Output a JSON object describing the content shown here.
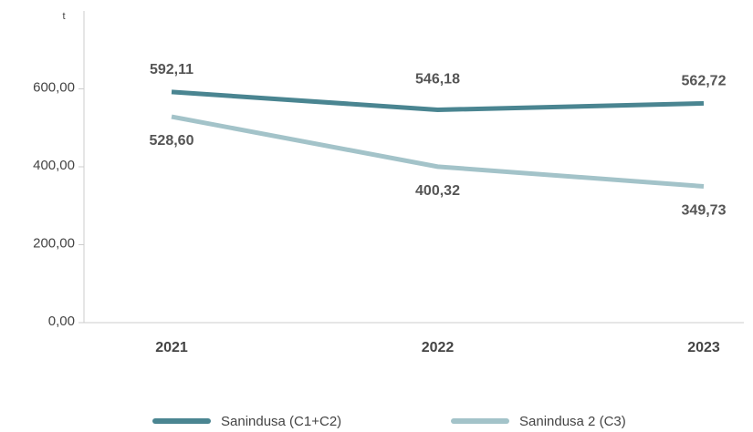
{
  "chart_data": {
    "type": "line",
    "y_label": "t",
    "categories": [
      "2021",
      "2022",
      "2023"
    ],
    "series": [
      {
        "name": "Sanindusa (C1+C2)",
        "color": "#4a8591",
        "values": [
          592.11,
          546.18,
          562.72
        ],
        "value_labels": [
          "592,11",
          "546,18",
          "562,72"
        ]
      },
      {
        "name": "Sanindusa 2 (C3)",
        "color": "#a3c3c9",
        "values": [
          528.6,
          400.32,
          349.73
        ],
        "value_labels": [
          "528,60",
          "400,32",
          "349,73"
        ]
      }
    ],
    "ylim": [
      0,
      800
    ],
    "yticks": [
      {
        "value": 0,
        "label": "0,00"
      },
      {
        "value": 200,
        "label": "200,00"
      },
      {
        "value": 400,
        "label": "400,00"
      },
      {
        "value": 600,
        "label": "600,00"
      }
    ],
    "legend": "bottom"
  }
}
